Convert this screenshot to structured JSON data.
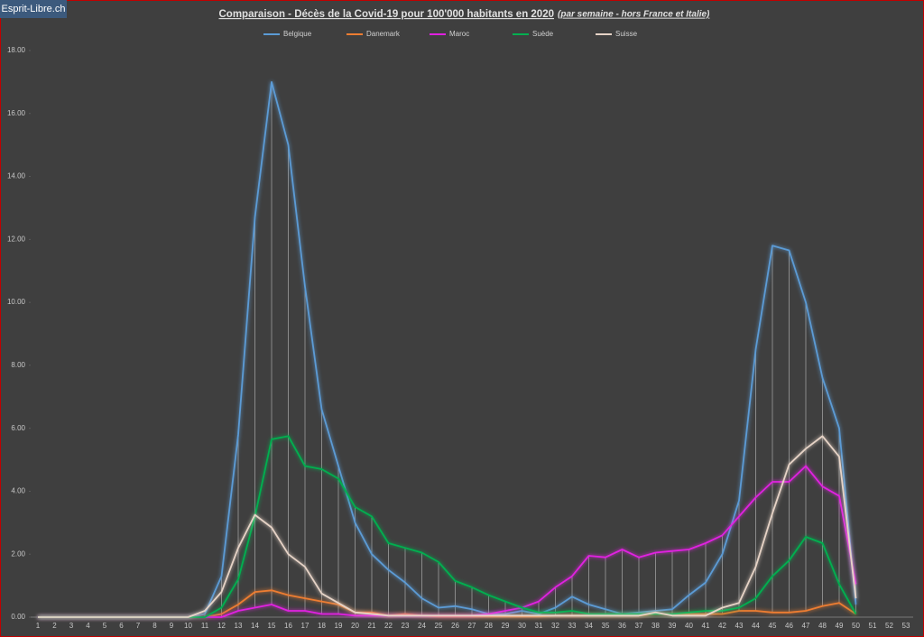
{
  "badge": "Esprit-Libre.ch",
  "chart_data": {
    "type": "line",
    "title": "Comparaison - Décès de la Covid-19 pour 100'000  habitants en 2020",
    "subtitle": "(par semaine - hors France et Italie)",
    "categories": [
      "1",
      "2",
      "3",
      "4",
      "5",
      "6",
      "7",
      "8",
      "9",
      "10",
      "11",
      "12",
      "13",
      "14",
      "15",
      "16",
      "17",
      "18",
      "19",
      "20",
      "21",
      "22",
      "23",
      "24",
      "25",
      "26",
      "27",
      "28",
      "29",
      "30",
      "31",
      "32",
      "33",
      "34",
      "35",
      "36",
      "37",
      "38",
      "39",
      "40",
      "41",
      "42",
      "43",
      "44",
      "45",
      "46",
      "47",
      "48",
      "49",
      "50",
      "51",
      "52",
      "53"
    ],
    "ylim": [
      0,
      18
    ],
    "yticks": [
      {
        "value": 0,
        "label": "0.00"
      },
      {
        "value": 2,
        "label": "2.00"
      },
      {
        "value": 4,
        "label": "4.00"
      },
      {
        "value": 6,
        "label": "6.00"
      },
      {
        "value": 8,
        "label": "8.00"
      },
      {
        "value": 10,
        "label": "10.00"
      },
      {
        "value": 12,
        "label": "12.00"
      },
      {
        "value": 14,
        "label": "14.00"
      },
      {
        "value": 16,
        "label": "16.00"
      },
      {
        "value": 18,
        "label": "18.00"
      }
    ],
    "grid": false,
    "legend": "top",
    "series": [
      {
        "name": "Belgique",
        "color": "#5b9bd5",
        "values": [
          0,
          0,
          0,
          0,
          0,
          0,
          0,
          0,
          0,
          0,
          0.1,
          1.3,
          5.8,
          12.7,
          17.0,
          15.0,
          10.5,
          6.6,
          4.8,
          3.0,
          2.0,
          1.5,
          1.1,
          0.6,
          0.3,
          0.35,
          0.25,
          0.1,
          0.1,
          0.2,
          0.1,
          0.3,
          0.65,
          0.4,
          0.25,
          0.1,
          0.15,
          0.2,
          0.25,
          0.7,
          1.1,
          2.0,
          3.7,
          8.5,
          11.8,
          11.65,
          10.0,
          7.6,
          6.0,
          0.4,
          null,
          null,
          null
        ]
      },
      {
        "name": "Danemark",
        "color": "#ed7d31",
        "values": [
          0,
          0,
          0,
          0,
          0,
          0,
          0,
          0,
          0,
          0,
          0,
          0.1,
          0.4,
          0.8,
          0.85,
          0.7,
          0.6,
          0.5,
          0.4,
          0.15,
          0.15,
          0.05,
          0.1,
          0.05,
          0.02,
          0.02,
          0.02,
          0.02,
          0.02,
          0.02,
          0.02,
          0.05,
          0.05,
          0.05,
          0.05,
          0.05,
          0.05,
          0.1,
          0.1,
          0.1,
          0.1,
          0.1,
          0.2,
          0.2,
          0.15,
          0.15,
          0.2,
          0.35,
          0.45,
          0.1,
          null,
          null,
          null
        ]
      },
      {
        "name": "Maroc",
        "color": "#e020e0",
        "values": [
          0,
          0,
          0,
          0,
          0,
          0,
          0,
          0,
          0,
          0,
          0,
          0,
          0.2,
          0.3,
          0.4,
          0.2,
          0.2,
          0.1,
          0.1,
          0.05,
          0.05,
          0.05,
          0.05,
          0.05,
          0.05,
          0.05,
          0.05,
          0.1,
          0.2,
          0.3,
          0.5,
          0.95,
          1.3,
          1.95,
          1.9,
          2.15,
          1.9,
          2.05,
          2.1,
          2.15,
          2.35,
          2.6,
          3.2,
          3.8,
          4.3,
          4.3,
          4.8,
          4.15,
          3.85,
          1.05,
          null,
          null,
          null
        ]
      },
      {
        "name": "Suède",
        "color": "#00b050",
        "values": [
          0,
          0,
          0,
          0,
          0,
          0,
          0,
          0,
          0,
          0,
          0,
          0.3,
          1.2,
          3.2,
          5.65,
          5.75,
          4.8,
          4.7,
          4.4,
          3.5,
          3.2,
          2.35,
          2.2,
          2.05,
          1.75,
          1.15,
          0.95,
          0.7,
          0.5,
          0.3,
          0.15,
          0.15,
          0.2,
          0.1,
          0.1,
          0.1,
          0.1,
          0.1,
          0.1,
          0.15,
          0.2,
          0.2,
          0.3,
          0.6,
          1.3,
          1.8,
          2.55,
          2.35,
          1.05,
          0.1,
          null,
          null,
          null
        ]
      },
      {
        "name": "Suisse",
        "color": "#e6d3c6",
        "values": [
          0,
          0,
          0,
          0,
          0,
          0,
          0,
          0,
          0,
          0,
          0.2,
          0.8,
          2.2,
          3.25,
          2.85,
          2.0,
          1.6,
          0.75,
          0.45,
          0.15,
          0.1,
          0.05,
          0.05,
          0.05,
          0.05,
          0.05,
          0.05,
          0.05,
          0.05,
          0.05,
          0.05,
          0.05,
          0.05,
          0.05,
          0.05,
          0.05,
          0.05,
          0.15,
          0.05,
          0.05,
          0.05,
          0.3,
          0.45,
          1.6,
          3.3,
          4.85,
          5.35,
          5.75,
          5.1,
          0.6,
          null,
          null,
          null
        ]
      }
    ]
  }
}
